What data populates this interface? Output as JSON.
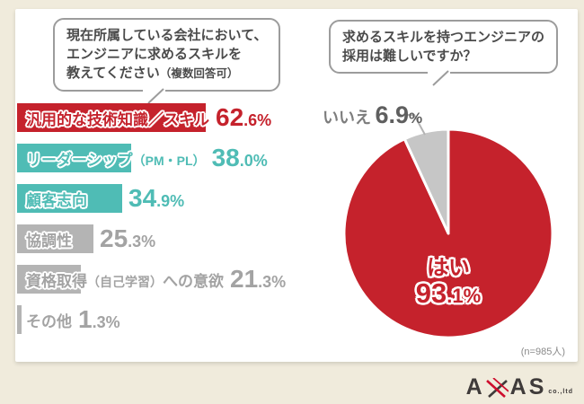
{
  "page": {
    "background": "#f0ebdc",
    "card_background": "#ffffff"
  },
  "left_panel": {
    "question": {
      "line1": "現在所属している会社において、",
      "line2": "エンジニアに求めるスキルを",
      "line3": "教えてください",
      "note": "（複数回答可）"
    },
    "bars": [
      {
        "label": "汎用的な技術知識／スキル",
        "note": "",
        "tail": "",
        "pct_big": "62",
        "pct_small": ".6%"
      },
      {
        "label": "リーダーシップ",
        "note": "（PM・PL）",
        "tail": "",
        "pct_big": "38",
        "pct_small": ".0%"
      },
      {
        "label": "顧客志向",
        "note": "",
        "tail": "",
        "pct_big": "34",
        "pct_small": ".9%"
      },
      {
        "label": "協調性",
        "note": "",
        "tail": "",
        "pct_big": "25",
        "pct_small": ".3%"
      },
      {
        "label": "資格取得",
        "note": "（自己学習）",
        "tail": "への意欲",
        "pct_big": "21",
        "pct_small": ".3%"
      },
      {
        "label": "その他",
        "note": "",
        "tail": "",
        "pct_big": "1",
        "pct_small": ".3%"
      }
    ]
  },
  "right_panel": {
    "question": {
      "line1": "求めるスキルを持つエンジニアの",
      "line2": "採用は難しいですか？"
    },
    "pie_labels": {
      "no_label": "いいえ",
      "no_big": "6.9",
      "no_small": "%",
      "yes_label": "はい",
      "yes_big": "93",
      "yes_small": ".1%"
    },
    "sample_note": "(n=985人)"
  },
  "logo": {
    "left": "A",
    "right": "AS",
    "suffix": "co.,ltd"
  },
  "chart_data": [
    {
      "type": "bar",
      "orientation": "horizontal",
      "title": "現在所属している会社において、エンジニアに求めるスキルを教えてください（複数回答可）",
      "categories": [
        "汎用的な技術知識／スキル",
        "リーダーシップ（PM・PL）",
        "顧客志向",
        "協調性",
        "資格取得（自己学習）への意欲",
        "その他"
      ],
      "values": [
        62.6,
        38.0,
        34.9,
        25.3,
        21.3,
        1.3
      ],
      "unit": "%",
      "xlim": [
        0,
        100
      ],
      "bar_colors": [
        "#c5222c",
        "#4fbcb5",
        "#4fbcb5",
        "#b4b4b4",
        "#b4b4b4",
        "#b4b4b4"
      ],
      "text_colors": [
        "#c5222c",
        "#4fbcb5",
        "#4fbcb5",
        "#a3a3a3",
        "#a3a3a3",
        "#a3a3a3"
      ],
      "grid": false
    },
    {
      "type": "pie",
      "title": "求めるスキルを持つエンジニアの採用は難しいですか？",
      "categories": [
        "はい",
        "いいえ"
      ],
      "values": [
        93.1,
        6.9
      ],
      "colors": [
        "#c5222c",
        "#c6c6c6"
      ],
      "note": "(n=985人)",
      "start_angle_deg": 0,
      "legend_position": "none"
    }
  ]
}
